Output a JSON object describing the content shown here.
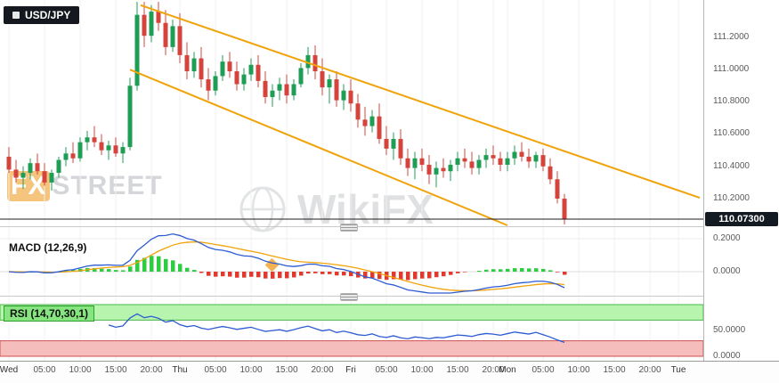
{
  "app": {
    "symbol_badge": "USD/JPY"
  },
  "watermarks": {
    "fx": "FX",
    "street": "STREET",
    "wikifx": "WikiFX"
  },
  "chart_data": {
    "type": "candlestick",
    "symbol": "USD/JPY",
    "timeframe": "1 hour, Wed through Mon (weekend gap)",
    "title": "USD/JPY",
    "price_tick_labels": [
      "111.2000",
      "111.0000",
      "110.8000",
      "110.6000",
      "110.4000",
      "110.2000"
    ],
    "price_ticks": [
      111.2,
      111.0,
      110.8,
      110.6,
      110.4,
      110.2
    ],
    "current_price": 110.073,
    "current_price_label": "110.07300",
    "time_ticks": [
      {
        "label": "Wed",
        "slot": 0
      },
      {
        "label": "05:00",
        "slot": 5
      },
      {
        "label": "10:00",
        "slot": 10
      },
      {
        "label": "15:00",
        "slot": 15
      },
      {
        "label": "20:00",
        "slot": 20
      },
      {
        "label": "Thu",
        "slot": 24
      },
      {
        "label": "05:00",
        "slot": 29
      },
      {
        "label": "10:00",
        "slot": 34
      },
      {
        "label": "15:00",
        "slot": 39
      },
      {
        "label": "20:00",
        "slot": 44
      },
      {
        "label": "Fri",
        "slot": 48
      },
      {
        "label": "05:00",
        "slot": 53
      },
      {
        "label": "10:00",
        "slot": 58
      },
      {
        "label": "15:00",
        "slot": 63
      },
      {
        "label": "20:00",
        "slot": 68
      },
      {
        "label": "Mon",
        "slot": 70
      },
      {
        "label": "05:00",
        "slot": 75
      },
      {
        "label": "10:00",
        "slot": 80
      },
      {
        "label": "15:00",
        "slot": 85
      },
      {
        "label": "20:00",
        "slot": 90
      },
      {
        "label": "Tue",
        "slot": 94
      }
    ],
    "candles": [
      [
        110.46,
        110.52,
        110.36,
        110.38
      ],
      [
        110.38,
        110.44,
        110.3,
        110.33
      ],
      [
        110.33,
        110.4,
        110.26,
        110.36
      ],
      [
        110.36,
        110.45,
        110.32,
        110.42
      ],
      [
        110.42,
        110.48,
        110.35,
        110.37
      ],
      [
        110.37,
        110.42,
        110.28,
        110.3
      ],
      [
        110.3,
        110.38,
        110.25,
        110.36
      ],
      [
        110.36,
        110.46,
        110.33,
        110.44
      ],
      [
        110.44,
        110.52,
        110.4,
        110.48
      ],
      [
        110.48,
        110.55,
        110.42,
        110.45
      ],
      [
        110.45,
        110.58,
        110.43,
        110.55
      ],
      [
        110.55,
        110.62,
        110.5,
        110.58
      ],
      [
        110.58,
        110.65,
        110.52,
        110.55
      ],
      [
        110.55,
        110.6,
        110.47,
        110.5
      ],
      [
        110.5,
        110.56,
        110.44,
        110.53
      ],
      [
        110.53,
        110.58,
        110.46,
        110.48
      ],
      [
        110.48,
        110.55,
        110.42,
        110.52
      ],
      [
        110.52,
        110.95,
        110.5,
        110.9
      ],
      [
        110.9,
        111.42,
        110.87,
        111.34
      ],
      [
        111.34,
        111.42,
        111.14,
        111.21
      ],
      [
        111.21,
        111.4,
        111.17,
        111.36
      ],
      [
        111.36,
        111.42,
        111.24,
        111.29
      ],
      [
        111.29,
        111.37,
        111.09,
        111.14
      ],
      [
        111.14,
        111.31,
        111.11,
        111.27
      ],
      [
        111.27,
        111.35,
        111.04,
        111.09
      ],
      [
        111.09,
        111.17,
        110.94,
        110.99
      ],
      [
        110.99,
        111.11,
        110.95,
        111.07
      ],
      [
        111.07,
        111.14,
        110.89,
        110.94
      ],
      [
        110.94,
        111.01,
        110.81,
        110.87
      ],
      [
        110.87,
        110.99,
        110.84,
        110.96
      ],
      [
        110.96,
        111.09,
        110.93,
        111.05
      ],
      [
        111.05,
        111.11,
        110.95,
        110.99
      ],
      [
        110.99,
        111.05,
        110.87,
        110.91
      ],
      [
        110.91,
        111.01,
        110.87,
        110.97
      ],
      [
        110.97,
        111.07,
        110.93,
        111.03
      ],
      [
        111.03,
        111.09,
        110.89,
        110.93
      ],
      [
        110.93,
        110.99,
        110.79,
        110.83
      ],
      [
        110.83,
        110.91,
        110.77,
        110.87
      ],
      [
        110.87,
        110.95,
        110.81,
        110.91
      ],
      [
        110.91,
        110.97,
        110.79,
        110.84
      ],
      [
        110.84,
        110.94,
        110.81,
        110.91
      ],
      [
        110.91,
        111.04,
        110.89,
        111.01
      ],
      [
        111.01,
        111.14,
        110.97,
        111.09
      ],
      [
        111.09,
        111.15,
        110.94,
        110.99
      ],
      [
        110.99,
        111.07,
        110.84,
        110.89
      ],
      [
        110.89,
        110.97,
        110.79,
        110.94
      ],
      [
        110.94,
        110.99,
        110.77,
        110.81
      ],
      [
        110.81,
        110.91,
        110.75,
        110.87
      ],
      [
        110.87,
        110.94,
        110.74,
        110.79
      ],
      [
        110.79,
        110.85,
        110.64,
        110.69
      ],
      [
        110.69,
        110.77,
        110.59,
        110.65
      ],
      [
        110.65,
        110.75,
        110.61,
        110.71
      ],
      [
        110.71,
        110.79,
        110.54,
        110.57
      ],
      [
        110.57,
        110.65,
        110.47,
        110.51
      ],
      [
        110.51,
        110.61,
        110.44,
        110.57
      ],
      [
        110.57,
        110.63,
        110.41,
        110.45
      ],
      [
        110.45,
        110.51,
        110.34,
        110.39
      ],
      [
        110.39,
        110.49,
        110.32,
        110.45
      ],
      [
        110.45,
        110.51,
        110.37,
        110.41
      ],
      [
        110.41,
        110.47,
        110.29,
        110.35
      ],
      [
        110.35,
        110.43,
        110.27,
        110.39
      ],
      [
        110.39,
        110.45,
        110.33,
        110.37
      ],
      [
        110.37,
        110.44,
        110.31,
        110.41
      ],
      [
        110.41,
        110.49,
        110.37,
        110.45
      ],
      [
        110.45,
        110.51,
        110.39,
        110.43
      ],
      [
        110.43,
        110.49,
        110.35,
        110.39
      ],
      [
        110.39,
        110.47,
        110.35,
        110.44
      ],
      [
        110.44,
        110.51,
        110.39,
        110.47
      ],
      [
        110.47,
        110.53,
        110.41,
        110.45
      ],
      [
        110.45,
        110.49,
        110.37,
        110.41
      ],
      [
        110.41,
        110.49,
        110.37,
        110.45
      ],
      [
        110.45,
        110.53,
        110.41,
        110.49
      ],
      [
        110.49,
        110.55,
        110.43,
        110.46
      ],
      [
        110.46,
        110.51,
        110.39,
        110.43
      ],
      [
        110.43,
        110.49,
        110.39,
        110.47
      ],
      [
        110.47,
        110.51,
        110.37,
        110.4
      ],
      [
        110.4,
        110.45,
        110.29,
        110.32
      ],
      [
        110.32,
        110.37,
        110.17,
        110.2
      ],
      [
        110.2,
        110.23,
        110.02,
        110.07
      ]
    ],
    "channel_lines": {
      "upper": [
        [
          18.5,
          111.4
        ],
        [
          97.0,
          110.205
        ]
      ],
      "lower": [
        [
          17.0,
          111.0
        ],
        [
          70.0,
          110.03
        ]
      ]
    },
    "indicators": {
      "macd": {
        "label": "MACD (12,26,9)",
        "params": [
          12,
          26,
          9
        ],
        "axis_tick_labels": [
          "0.2000",
          "0.0000"
        ],
        "axis_ticks": [
          0.2,
          0
        ],
        "series": "derived from candles: EMA12-EMA26 with EMA9 signal and histogram"
      },
      "rsi": {
        "label": "RSI (14,70,30,1)",
        "params": [
          14,
          70,
          30,
          1
        ],
        "overbought": 70,
        "oversold": 30,
        "axis_tick_labels": [
          "50.0000",
          "0.0000"
        ],
        "axis_ticks": [
          50,
          0
        ],
        "series": "derived from candles: Wilder RSI(14)"
      }
    },
    "colors": {
      "bull": "#1d9e54",
      "bear": "#d5443c",
      "channel": "#f0a30a",
      "macd_line": "#2d5bd1",
      "macd_signal": "#f0a30a",
      "hist_pos": "#2ecc40",
      "hist_neg": "#e03a2f",
      "rsi_line": "#2d5bd1",
      "price_line": "#1c1c1c",
      "overbought_band": "#b7f5ae",
      "oversold_band": "#f6bdbd",
      "badge_bg": "#141a22"
    }
  }
}
